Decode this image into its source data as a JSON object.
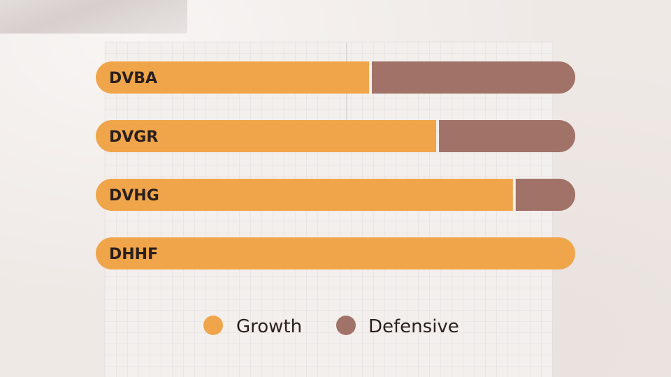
{
  "chart_data": {
    "type": "bar",
    "orientation": "horizontal",
    "stacked": true,
    "normalized": true,
    "categories": [
      "DVBA",
      "DVGR",
      "DVHG",
      "DHHF"
    ],
    "series": [
      {
        "name": "Growth",
        "color": "#f0a54a",
        "values": [
          57,
          71,
          87,
          100
        ]
      },
      {
        "name": "Defensive",
        "color": "#a07268",
        "values": [
          43,
          29,
          13,
          0
        ]
      }
    ],
    "xlim": [
      0,
      100
    ],
    "grid": false,
    "legend": "bottom"
  }
}
